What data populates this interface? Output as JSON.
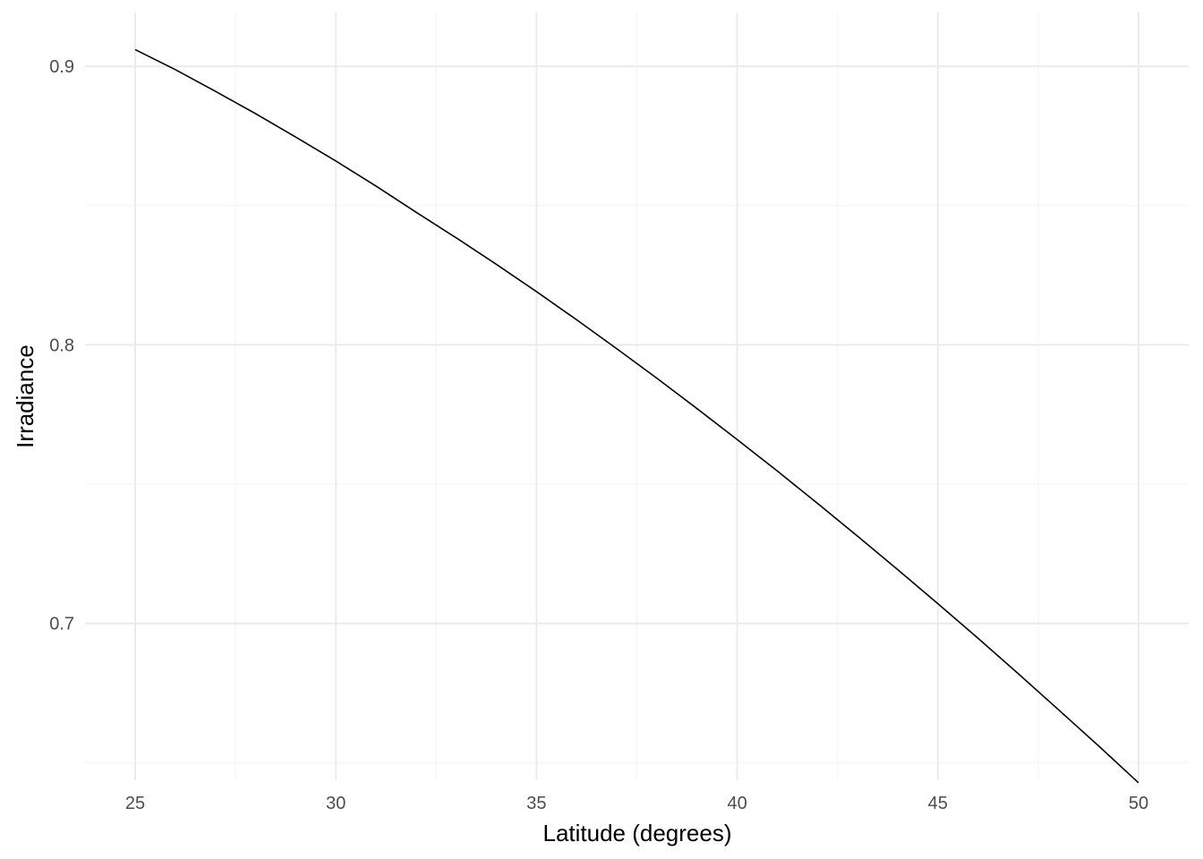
{
  "chart_data": {
    "type": "line",
    "title": "",
    "xlabel": "Latitude (degrees)",
    "ylabel": "Irradiance",
    "xlim": [
      23.75,
      51.25
    ],
    "ylim": [
      0.6437,
      0.9193
    ],
    "x_ticks": [
      25,
      30,
      35,
      40,
      45,
      50
    ],
    "x_tick_labels": [
      "25",
      "30",
      "35",
      "40",
      "45",
      "50"
    ],
    "x_minor_ticks": [
      27.5,
      32.5,
      37.5,
      42.5,
      47.5
    ],
    "y_ticks": [
      0.7,
      0.8,
      0.9
    ],
    "y_tick_labels": [
      "0.7",
      "0.8",
      "0.9"
    ],
    "y_minor_ticks": [
      0.65,
      0.75,
      0.85
    ],
    "grid": true,
    "legend": "none",
    "line_color": "#000000",
    "series": [
      {
        "x": [
          25,
          26,
          27,
          28,
          29,
          30,
          31,
          32,
          33,
          34,
          35,
          36,
          37,
          38,
          39,
          40,
          41,
          42,
          43,
          44,
          45,
          46,
          47,
          48,
          49,
          50
        ],
        "y": [
          0.906,
          0.8988,
          0.891,
          0.883,
          0.8746,
          0.866,
          0.857,
          0.8476,
          0.8384,
          0.8289,
          0.8191,
          0.809,
          0.7986,
          0.788,
          0.7771,
          0.766,
          0.7547,
          0.7431,
          0.7313,
          0.7193,
          0.7071,
          0.6947,
          0.682,
          0.6691,
          0.6561,
          0.6428
        ]
      }
    ]
  }
}
